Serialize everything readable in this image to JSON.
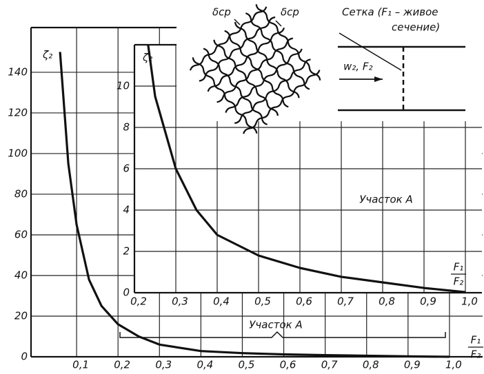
{
  "chart_data": [
    {
      "type": "line",
      "y_label": "ζ₂",
      "x_label": {
        "numerator": "F₁",
        "denominator": "F₂"
      },
      "xlim": [
        -0.01,
        1.08
      ],
      "ylim": [
        0,
        162
      ],
      "xticks": [
        {
          "value": 0.1,
          "label": "0,1"
        },
        {
          "value": 0.2,
          "label": "0,2"
        },
        {
          "value": 0.3,
          "label": "0,3"
        },
        {
          "value": 0.4,
          "label": "0,4"
        },
        {
          "value": 0.5,
          "label": "0,5"
        },
        {
          "value": 0.6,
          "label": "0,6"
        },
        {
          "value": 0.7,
          "label": "0,7"
        },
        {
          "value": 0.8,
          "label": "0,8"
        },
        {
          "value": 0.9,
          "label": "0,9"
        },
        {
          "value": 1.0,
          "label": "1,0"
        }
      ],
      "yticks": [
        0,
        20,
        40,
        60,
        80,
        100,
        120,
        140
      ],
      "x": [
        0.06,
        0.08,
        0.1,
        0.13,
        0.16,
        0.2,
        0.25,
        0.3,
        0.4,
        0.5,
        0.6,
        0.7,
        0.8,
        0.9,
        1.0
      ],
      "values": [
        150,
        95,
        65,
        38,
        25,
        16,
        10,
        6,
        2.8,
        1.8,
        1.2,
        0.8,
        0.5,
        0.2,
        0
      ],
      "annotation": "Участок А",
      "color": "#111111"
    },
    {
      "type": "line",
      "y_label": "ζ₂",
      "x_label": {
        "numerator": "F₁",
        "denominator": "F₂"
      },
      "xlim": [
        0.2,
        1.04
      ],
      "ylim": [
        0,
        12
      ],
      "xticks": [
        {
          "value": 0.2,
          "label": "0,2"
        },
        {
          "value": 0.3,
          "label": "0,3"
        },
        {
          "value": 0.4,
          "label": "0,4"
        },
        {
          "value": 0.5,
          "label": "0,5"
        },
        {
          "value": 0.6,
          "label": "0,6"
        },
        {
          "value": 0.7,
          "label": "0,7"
        },
        {
          "value": 0.8,
          "label": "0,8"
        },
        {
          "value": 0.9,
          "label": "0,9"
        },
        {
          "value": 1.0,
          "label": "1,0"
        }
      ],
      "yticks": [
        0,
        2,
        4,
        6,
        8,
        10
      ],
      "x": [
        0.233,
        0.25,
        0.3,
        0.35,
        0.4,
        0.5,
        0.6,
        0.7,
        0.8,
        0.9,
        1.0
      ],
      "values": [
        12,
        9.5,
        6,
        4,
        2.8,
        1.8,
        1.2,
        0.77,
        0.5,
        0.23,
        0.03
      ],
      "annotation": "Участок А",
      "color": "#111111"
    }
  ],
  "diagram": {
    "mesh_labels": [
      "δср",
      "δср"
    ],
    "screen_label": [
      "Сетка (F₁ – живое",
      "сечение)"
    ],
    "flow_label": "w₂, F₂"
  }
}
